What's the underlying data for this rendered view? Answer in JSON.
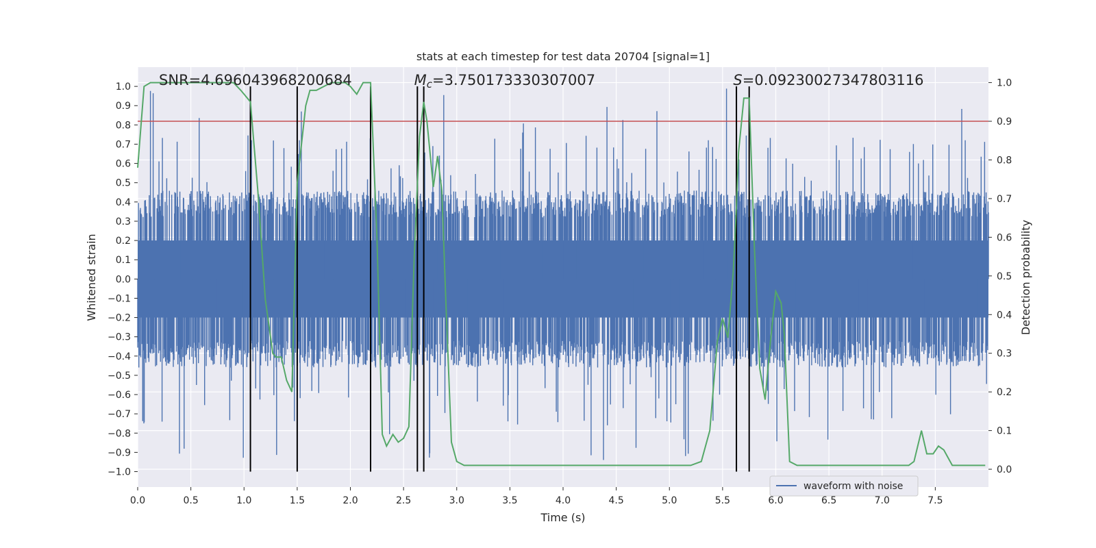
{
  "chart_data": {
    "type": "line",
    "title": "stats at each timestep for test data 20704 [signal=1]",
    "xlabel": "Time (s)",
    "ylabel_left": "Whitened strain",
    "ylabel_right": "Detection probability",
    "xlim": [
      0.0,
      8.0
    ],
    "ylim_left": [
      -1.08,
      1.1
    ],
    "ylim_right": [
      -0.046,
      1.04
    ],
    "x_ticks": [
      0.0,
      0.5,
      1.0,
      1.5,
      2.0,
      2.5,
      3.0,
      3.5,
      4.0,
      4.5,
      5.0,
      5.5,
      6.0,
      6.5,
      7.0,
      7.5
    ],
    "x_tick_labels": [
      "0.0",
      "0.5",
      "1.0",
      "1.5",
      "2.0",
      "2.5",
      "3.0",
      "3.5",
      "4.0",
      "4.5",
      "5.0",
      "5.5",
      "6.0",
      "6.5",
      "7.0",
      "7.5"
    ],
    "y_left_ticks": [
      -1.0,
      -0.9,
      -0.8,
      -0.7,
      -0.6,
      -0.5,
      -0.4,
      -0.3,
      -0.2,
      -0.1,
      0.0,
      0.1,
      0.2,
      0.3,
      0.4,
      0.5,
      0.6,
      0.7,
      0.8,
      0.9,
      1.0
    ],
    "y_left_tick_labels": [
      "−1.0",
      "−0.9",
      "−0.8",
      "−0.7",
      "−0.6",
      "−0.5",
      "−0.4",
      "−0.3",
      "−0.2",
      "−0.1",
      "0.0",
      "0.1",
      "0.2",
      "0.3",
      "0.4",
      "0.5",
      "0.6",
      "0.7",
      "0.8",
      "0.9",
      "1.0"
    ],
    "y_right_ticks": [
      0.0,
      0.1,
      0.2,
      0.3,
      0.4,
      0.5,
      0.6,
      0.7,
      0.8,
      0.9,
      1.0
    ],
    "y_right_tick_labels": [
      "0.0",
      "0.1",
      "0.2",
      "0.3",
      "0.4",
      "0.5",
      "0.6",
      "0.7",
      "0.8",
      "0.9",
      "1.0"
    ],
    "threshold": {
      "value": 0.9,
      "axis": "right",
      "color": "#c44e52"
    },
    "detection_boundaries": [
      1.06,
      1.5,
      2.19,
      2.63,
      2.69,
      5.63,
      5.75
    ],
    "annotations": [
      {
        "text": "SNR=4.696043968200684",
        "x": 0.2
      },
      {
        "text": "M_c=3.750173330307007",
        "x": 2.6,
        "italic_prefix": "M",
        "sub": "c",
        "rest": "=3.750173330307007"
      },
      {
        "text": "S=0.09230027347803116",
        "x": 5.6,
        "italic_prefix": "S",
        "rest": "=0.09230027347803116"
      }
    ],
    "series": [
      {
        "name": "waveform with noise",
        "axis": "left",
        "color": "#4c72b0",
        "description": "whitened strain noise, roughly ±0.45 envelope with spikes up to ±1.0"
      },
      {
        "name": "detection probability",
        "axis": "right",
        "color": "#55a868",
        "x": [
          0.0,
          0.06,
          0.12,
          0.2,
          0.3,
          0.4,
          0.5,
          0.6,
          0.7,
          0.8,
          0.9,
          0.97,
          1.0,
          1.06,
          1.13,
          1.2,
          1.27,
          1.3,
          1.35,
          1.4,
          1.45,
          1.5,
          1.58,
          1.62,
          1.68,
          1.75,
          1.82,
          1.88,
          1.95,
          2.0,
          2.06,
          2.12,
          2.19,
          2.25,
          2.3,
          2.34,
          2.4,
          2.45,
          2.5,
          2.55,
          2.6,
          2.65,
          2.69,
          2.72,
          2.78,
          2.82,
          2.86,
          2.9,
          2.95,
          3.0,
          3.07,
          3.2,
          3.4,
          3.6,
          3.75,
          3.8,
          3.9,
          4.0,
          4.2,
          4.5,
          4.75,
          4.85,
          5.0,
          5.2,
          5.3,
          5.38,
          5.45,
          5.5,
          5.55,
          5.6,
          5.63,
          5.65,
          5.7,
          5.75,
          5.8,
          5.85,
          5.9,
          5.95,
          6.0,
          6.05,
          6.08,
          6.13,
          6.2,
          6.5,
          7.0,
          7.25,
          7.3,
          7.37,
          7.42,
          7.48,
          7.53,
          7.58,
          7.62,
          7.66,
          7.72,
          7.8,
          7.9,
          7.97
        ],
        "values": [
          0.78,
          0.99,
          1.0,
          1.0,
          1.0,
          1.0,
          1.0,
          1.0,
          1.0,
          1.0,
          1.0,
          0.98,
          0.97,
          0.95,
          0.72,
          0.44,
          0.3,
          0.29,
          0.29,
          0.23,
          0.2,
          0.74,
          0.94,
          0.98,
          0.98,
          0.99,
          1.0,
          1.0,
          1.0,
          0.99,
          0.97,
          1.0,
          1.0,
          0.6,
          0.09,
          0.06,
          0.09,
          0.07,
          0.08,
          0.11,
          0.55,
          0.86,
          0.95,
          0.9,
          0.73,
          0.81,
          0.72,
          0.42,
          0.07,
          0.02,
          0.01,
          0.01,
          0.01,
          0.01,
          0.01,
          0.01,
          0.01,
          0.01,
          0.01,
          0.01,
          0.01,
          0.01,
          0.01,
          0.01,
          0.02,
          0.1,
          0.33,
          0.39,
          0.34,
          0.51,
          0.68,
          0.82,
          0.96,
          0.96,
          0.57,
          0.26,
          0.18,
          0.33,
          0.46,
          0.43,
          0.35,
          0.02,
          0.01,
          0.01,
          0.01,
          0.01,
          0.02,
          0.1,
          0.04,
          0.04,
          0.06,
          0.05,
          0.03,
          0.01,
          0.01,
          0.01,
          0.01,
          0.01
        ]
      }
    ],
    "legend": {
      "entries": [
        "waveform with noise"
      ],
      "position": "lower-right"
    }
  }
}
